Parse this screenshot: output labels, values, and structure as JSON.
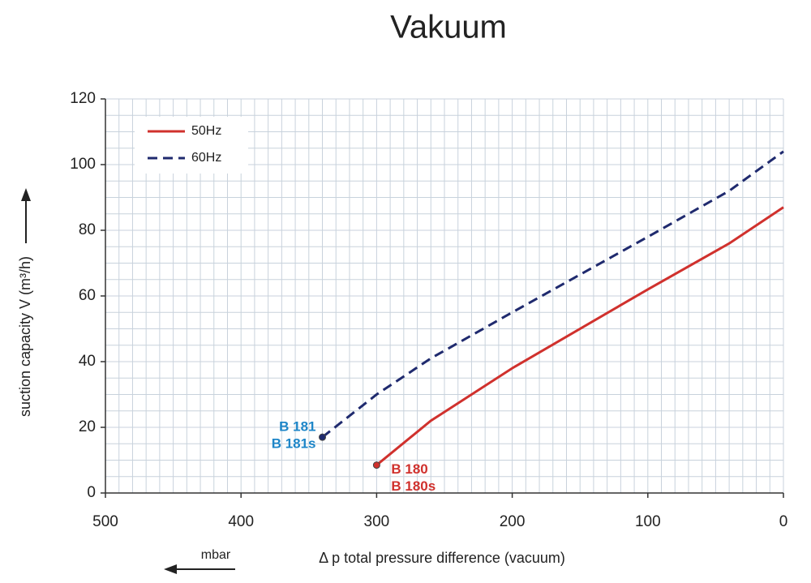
{
  "chart_data": {
    "type": "line",
    "title": "Vakuum",
    "x_label": "Δ p  total pressure difference (vacuum)",
    "x_unit": "mbar",
    "y_label": "suction capacity V (m³/h)",
    "xlim": [
      500,
      0
    ],
    "ylim": [
      0,
      120
    ],
    "xticks": [
      500,
      400,
      300,
      200,
      100,
      0
    ],
    "yticks": [
      0,
      20,
      40,
      60,
      80,
      100,
      120
    ],
    "grid": true,
    "xgrid_step": 10,
    "ygrid_step": 5,
    "legend": "upper left",
    "series": [
      {
        "name": "50Hz",
        "color": "#d0312d",
        "dash": false,
        "x": [
          300,
          260,
          200,
          100,
          40,
          0
        ],
        "values": [
          8.5,
          22,
          38,
          62,
          76,
          87
        ],
        "end_labels": [
          "B 180",
          "B 180s"
        ],
        "label_color": "#d0312d",
        "label_side": "right"
      },
      {
        "name": "60Hz",
        "color": "#1f2a6e",
        "dash": true,
        "x": [
          340,
          300,
          260,
          200,
          100,
          40,
          0
        ],
        "values": [
          17,
          30,
          41,
          55,
          78,
          92,
          104
        ],
        "end_labels": [
          "B 181",
          "B 181s"
        ],
        "label_color": "#1e86c8",
        "label_side": "left"
      }
    ]
  }
}
